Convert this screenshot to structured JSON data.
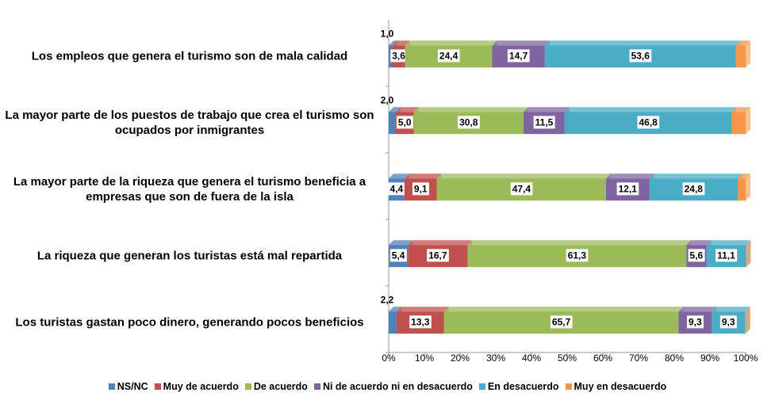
{
  "chart_data": {
    "type": "stacked-bar-horizontal",
    "categories": [
      "Los empleos que genera el turismo son de mala calidad",
      "La mayor parte de los puestos de trabajo que crea el turismo son ocupados por inmigrantes",
      "La mayor parte de la riqueza que genera el turismo beneficia a empresas que son de fuera de la isla",
      "La riqueza que generan los turistas está mal repartida",
      "Los turistas gastan poco dinero, generando pocos beneficios"
    ],
    "series": [
      {
        "name": "NS/NC",
        "color": "#4f81bd",
        "values": [
          1.0,
          2.0,
          4.4,
          5.4,
          2.2
        ],
        "value_labels": [
          "1,0",
          "2,0",
          "4,4",
          "5,4",
          "2,2"
        ]
      },
      {
        "name": "Muy de acuerdo",
        "color": "#c0504d",
        "values": [
          3.6,
          5.0,
          9.1,
          16.7,
          13.3
        ],
        "value_labels": [
          "3,6",
          "5,0",
          "9,1",
          "16,7",
          "13,3"
        ]
      },
      {
        "name": "De acuerdo",
        "color": "#9bbb59",
        "values": [
          24.4,
          30.8,
          47.4,
          61.3,
          65.7
        ],
        "value_labels": [
          "24,4",
          "30,8",
          "47,4",
          "61,3",
          "65,7"
        ]
      },
      {
        "name": "Ni de acuerdo ni en desacuerdo",
        "color": "#8064a2",
        "values": [
          14.7,
          11.5,
          12.1,
          5.6,
          9.3
        ],
        "value_labels": [
          "14,7",
          "11,5",
          "12,1",
          "5,6",
          "9,3"
        ]
      },
      {
        "name": "En desacuerdo",
        "color": "#4bacc6",
        "values": [
          53.6,
          46.8,
          24.8,
          11.1,
          9.3
        ],
        "value_labels": [
          "53,6",
          "46,8",
          "24,8",
          "11,1",
          "9,3"
        ]
      },
      {
        "name": "Muy en desacuerdo",
        "color": "#f79646",
        "values": [
          2.7,
          3.9,
          2.2,
          0,
          0.2
        ]
      }
    ],
    "xlim": [
      0,
      100
    ],
    "xticks": [
      {
        "value": 0,
        "label": "0%"
      },
      {
        "value": 10,
        "label": "10%"
      },
      {
        "value": 20,
        "label": "20%"
      },
      {
        "value": 30,
        "label": "30%"
      },
      {
        "value": 40,
        "label": "40%"
      },
      {
        "value": 50,
        "label": "50%"
      },
      {
        "value": 60,
        "label": "60%"
      },
      {
        "value": 70,
        "label": "70%"
      },
      {
        "value": 80,
        "label": "80%"
      },
      {
        "value": 90,
        "label": "90%"
      },
      {
        "value": 100,
        "label": "100%"
      }
    ],
    "legend": "bottom"
  }
}
